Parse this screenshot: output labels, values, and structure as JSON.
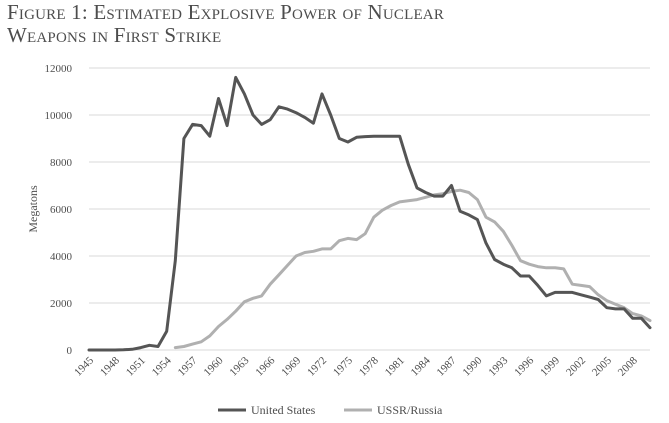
{
  "figure": {
    "title_line1": "Figure 1: Estimated Explosive Power of Nuclear",
    "title_line2": "Weapons in First Strike"
  },
  "chart_data": {
    "type": "line",
    "title": "Figure 1: Estimated Explosive Power of Nuclear Weapons in First Strike",
    "xlabel": "",
    "ylabel": "Megatons",
    "xlim": [
      1945,
      2010
    ],
    "ylim": [
      0,
      12000
    ],
    "x_ticks": [
      1945,
      1948,
      1951,
      1954,
      1957,
      1960,
      1963,
      1966,
      1969,
      1972,
      1975,
      1978,
      1981,
      1984,
      1987,
      1990,
      1993,
      1996,
      1999,
      2002,
      2005,
      2008
    ],
    "y_ticks": [
      0,
      2000,
      4000,
      6000,
      8000,
      10000,
      12000
    ],
    "grid": "horizontal",
    "legend_position": "bottom",
    "series": [
      {
        "name": "United States",
        "color": "#555555",
        "x": [
          1945,
          1946,
          1947,
          1948,
          1949,
          1950,
          1951,
          1952,
          1953,
          1954,
          1955,
          1956,
          1957,
          1958,
          1959,
          1960,
          1961,
          1962,
          1963,
          1964,
          1965,
          1966,
          1967,
          1968,
          1969,
          1970,
          1971,
          1972,
          1973,
          1974,
          1975,
          1976,
          1977,
          1978,
          1979,
          1980,
          1981,
          1982,
          1983,
          1984,
          1985,
          1986,
          1987,
          1988,
          1989,
          1990,
          1991,
          1992,
          1993,
          1994,
          1995,
          1996,
          1997,
          1998,
          1999,
          2000,
          2001,
          2002,
          2003,
          2004,
          2005,
          2006,
          2007,
          2008,
          2009,
          2010
        ],
        "values": [
          0,
          0,
          0,
          0,
          10,
          30,
          100,
          200,
          150,
          800,
          3800,
          9000,
          9600,
          9550,
          9100,
          10700,
          9550,
          11600,
          10900,
          10000,
          9600,
          9800,
          10350,
          10250,
          10100,
          9900,
          9650,
          10900,
          10000,
          9000,
          8850,
          9050,
          9080,
          9100,
          9100,
          9100,
          9100,
          7900,
          6900,
          6700,
          6550,
          6550,
          7000,
          5900,
          5750,
          5550,
          4550,
          3850,
          3650,
          3500,
          3150,
          3150,
          2750,
          2300,
          2450,
          2450,
          2450,
          2350,
          2250,
          2150,
          1800,
          1750,
          1750,
          1350,
          1350,
          950
        ]
      },
      {
        "name": "USSR/Russia",
        "color": "#b0b0b0",
        "x": [
          1955,
          1956,
          1957,
          1958,
          1959,
          1960,
          1961,
          1962,
          1963,
          1964,
          1965,
          1966,
          1967,
          1968,
          1969,
          1970,
          1971,
          1972,
          1973,
          1974,
          1975,
          1976,
          1977,
          1978,
          1979,
          1980,
          1981,
          1982,
          1983,
          1984,
          1985,
          1986,
          1987,
          1988,
          1989,
          1990,
          1991,
          1992,
          1993,
          1994,
          1995,
          1996,
          1997,
          1998,
          1999,
          2000,
          2001,
          2002,
          2003,
          2004,
          2005,
          2006,
          2007,
          2008,
          2009,
          2010
        ],
        "values": [
          100,
          150,
          250,
          350,
          600,
          1000,
          1300,
          1650,
          2050,
          2200,
          2300,
          2800,
          3200,
          3600,
          4000,
          4150,
          4200,
          4300,
          4300,
          4650,
          4750,
          4700,
          4950,
          5650,
          5950,
          6150,
          6300,
          6350,
          6400,
          6500,
          6600,
          6650,
          6750,
          6800,
          6700,
          6400,
          5650,
          5450,
          5050,
          4450,
          3800,
          3650,
          3550,
          3500,
          3500,
          3450,
          2800,
          2750,
          2700,
          2350,
          2100,
          1950,
          1800,
          1550,
          1450,
          1250
        ]
      }
    ]
  }
}
